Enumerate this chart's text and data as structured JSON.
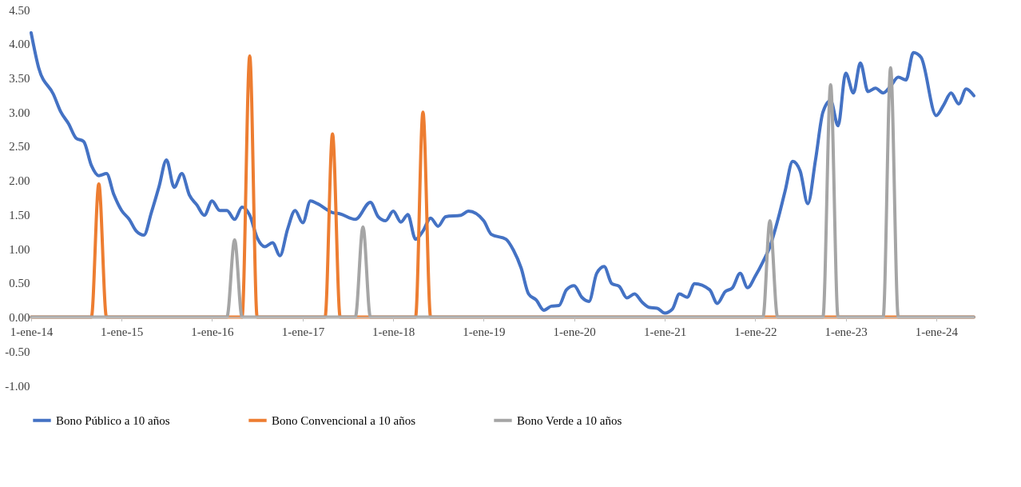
{
  "chart_data": {
    "type": "line",
    "xlim": [
      "2014-01-01",
      "2024-06-01"
    ],
    "xticks": [
      {
        "value": "2014-01-01",
        "label": "1-ene-14"
      },
      {
        "value": "2015-01-01",
        "label": "1-ene-15"
      },
      {
        "value": "2016-01-01",
        "label": "1-ene-16"
      },
      {
        "value": "2017-01-01",
        "label": "1-ene-17"
      },
      {
        "value": "2018-01-01",
        "label": "1-ene-18"
      },
      {
        "value": "2019-01-01",
        "label": "1-ene-19"
      },
      {
        "value": "2020-01-01",
        "label": "1-ene-20"
      },
      {
        "value": "2021-01-01",
        "label": "1-ene-21"
      },
      {
        "value": "2022-01-01",
        "label": "1-ene-22"
      },
      {
        "value": "2023-01-01",
        "label": "1-ene-23"
      },
      {
        "value": "2024-01-01",
        "label": "1-ene-24"
      }
    ],
    "ylim": [
      -1,
      4.5
    ],
    "yticks": [
      {
        "value": -1,
        "label": "-1.00"
      },
      {
        "value": -0.5,
        "label": "-0.50"
      },
      {
        "value": 0,
        "label": "0.00"
      },
      {
        "value": 0.5,
        "label": "0.50"
      },
      {
        "value": 1,
        "label": "1.00"
      },
      {
        "value": 1.5,
        "label": "1.50"
      },
      {
        "value": 2,
        "label": "2.00"
      },
      {
        "value": 2.5,
        "label": "2.50"
      },
      {
        "value": 3,
        "label": "3.00"
      },
      {
        "value": 3.5,
        "label": "3.50"
      },
      {
        "value": 4,
        "label": "4.00"
      },
      {
        "value": 4.5,
        "label": "4.50"
      }
    ],
    "legend": "bottom",
    "series": [
      {
        "name": "Bono Público a 10 años",
        "color": "#4472c4",
        "x": [
          "2014-01",
          "2014-02",
          "2014-04",
          "2014-05",
          "2014-06",
          "2014-07",
          "2014-08",
          "2014-09",
          "2014-10",
          "2014-11",
          "2014-12",
          "2015-01",
          "2015-02",
          "2015-03",
          "2015-04",
          "2015-05",
          "2015-06",
          "2015-07",
          "2015-08",
          "2015-09",
          "2015-10",
          "2015-11",
          "2015-12",
          "2016-01",
          "2016-02",
          "2016-03",
          "2016-04",
          "2016-05",
          "2016-06",
          "2016-07",
          "2016-08",
          "2016-09",
          "2016-10",
          "2016-11",
          "2016-12",
          "2017-01",
          "2017-02",
          "2017-03",
          "2017-05",
          "2017-06",
          "2017-08",
          "2017-10",
          "2017-11",
          "2017-12",
          "2018-01",
          "2018-02",
          "2018-03",
          "2018-04",
          "2018-05",
          "2018-06",
          "2018-07",
          "2018-08",
          "2018-10",
          "2018-11",
          "2019-01",
          "2019-02",
          "2019-04",
          "2019-05",
          "2019-06",
          "2019-07",
          "2019-08",
          "2019-09",
          "2019-10",
          "2019-11",
          "2019-12",
          "2020-01",
          "2020-02",
          "2020-03",
          "2020-04",
          "2020-05",
          "2020-06",
          "2020-07",
          "2020-08",
          "2020-09",
          "2020-10",
          "2020-11",
          "2020-12",
          "2021-01",
          "2021-02",
          "2021-03",
          "2021-04",
          "2021-05",
          "2021-07",
          "2021-08",
          "2021-09",
          "2021-10",
          "2021-11",
          "2021-12",
          "2022-01",
          "2022-02",
          "2022-03",
          "2022-04",
          "2022-05",
          "2022-06",
          "2022-07",
          "2022-08",
          "2022-09",
          "2022-10",
          "2022-11",
          "2022-12",
          "2023-01",
          "2023-02",
          "2023-03",
          "2023-04",
          "2023-05",
          "2023-06",
          "2023-07",
          "2023-08",
          "2023-09",
          "2023-10",
          "2023-11",
          "2024-01",
          "2024-02",
          "2024-03",
          "2024-04",
          "2024-05",
          "2024-06"
        ],
        "values": [
          4.16,
          3.64,
          3.26,
          3.0,
          2.83,
          2.62,
          2.57,
          2.22,
          2.07,
          2.1,
          1.79,
          1.56,
          1.43,
          1.26,
          1.2,
          1.53,
          1.91,
          2.3,
          1.9,
          2.1,
          1.79,
          1.64,
          1.49,
          1.7,
          1.56,
          1.56,
          1.43,
          1.61,
          1.49,
          1.16,
          1.03,
          1.09,
          0.9,
          1.29,
          1.56,
          1.38,
          1.7,
          1.66,
          1.53,
          1.51,
          1.43,
          1.68,
          1.47,
          1.41,
          1.55,
          1.39,
          1.5,
          1.14,
          1.26,
          1.45,
          1.33,
          1.47,
          1.49,
          1.55,
          1.41,
          1.21,
          1.14,
          0.98,
          0.72,
          0.34,
          0.25,
          0.1,
          0.16,
          0.17,
          0.4,
          0.46,
          0.29,
          0.23,
          0.64,
          0.74,
          0.49,
          0.45,
          0.28,
          0.34,
          0.22,
          0.14,
          0.13,
          0.06,
          0.12,
          0.34,
          0.29,
          0.49,
          0.4,
          0.2,
          0.37,
          0.43,
          0.64,
          0.43,
          0.6,
          0.81,
          1.03,
          1.41,
          1.84,
          2.28,
          2.14,
          1.66,
          2.3,
          3.0,
          3.17,
          2.8,
          3.57,
          3.28,
          3.72,
          3.3,
          3.35,
          3.28,
          3.38,
          3.51,
          3.47,
          3.87,
          3.8,
          2.95,
          3.11,
          3.28,
          3.12,
          3.34,
          3.24
        ]
      },
      {
        "name": "Bono Convencional a 10 años",
        "color": "#ed7d31",
        "x": [
          "2014-01",
          "2014-09",
          "2014-10",
          "2014-11",
          "2016-05",
          "2016-06",
          "2016-07",
          "2017-04",
          "2017-05",
          "2017-06",
          "2018-04",
          "2018-05",
          "2018-06",
          "2024-06"
        ],
        "values": [
          0,
          0,
          1.95,
          0,
          0,
          3.82,
          0,
          0,
          2.68,
          0,
          0,
          3.0,
          0,
          0
        ]
      },
      {
        "name": "Bono Verde a 10 años",
        "color": "#a5a5a5",
        "x": [
          "2014-01",
          "2016-03",
          "2016-04",
          "2016-05",
          "2017-08",
          "2017-09",
          "2017-10",
          "2022-02",
          "2022-03",
          "2022-04",
          "2022-10",
          "2022-11",
          "2022-12",
          "2023-06",
          "2023-07",
          "2023-08",
          "2024-06"
        ],
        "values": [
          0,
          0,
          1.13,
          0,
          0,
          1.32,
          0,
          0,
          1.41,
          0,
          0,
          3.4,
          0,
          0,
          3.65,
          0,
          0
        ]
      }
    ]
  }
}
